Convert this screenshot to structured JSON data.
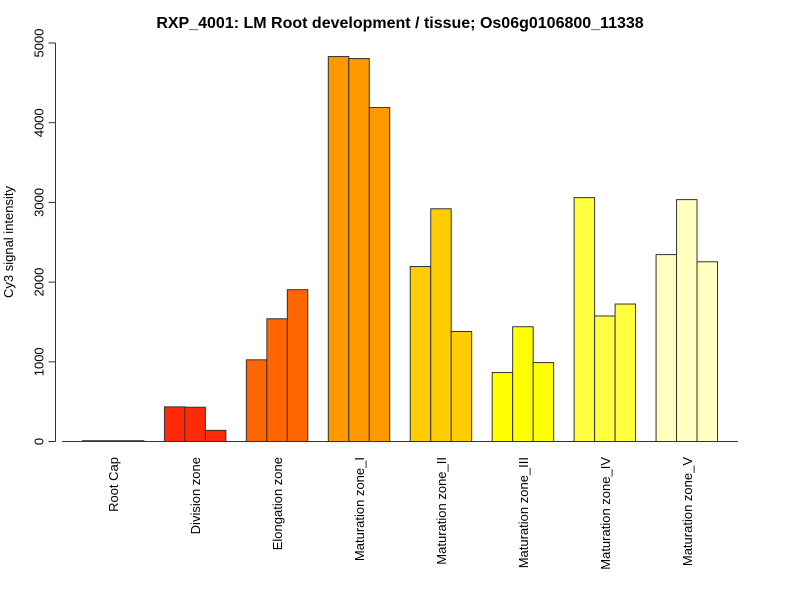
{
  "chart_data": {
    "type": "bar",
    "title": "RXP_4001: LM Root development / tissue; Os06g0106800_11338",
    "xlabel": "",
    "ylabel": "Cy3 signal intensity",
    "ylim": [
      0,
      5000
    ],
    "yticks": [
      "0",
      "1000",
      "2000",
      "3000",
      "4000",
      "5000"
    ],
    "ytick_values": [
      0,
      1000,
      2000,
      3000,
      4000,
      5000
    ],
    "grid": false,
    "legend": "none",
    "categories": [
      "Root Cap",
      "Division zone",
      "Elongation zone",
      "Maturation zone_I",
      "Maturation zone_II",
      "Maturation zone_III",
      "Maturation zone_IV",
      "Maturation zone_V"
    ],
    "colors": [
      "#FF2A0A",
      "#FF2A0A",
      "#FF6600",
      "#FF9900",
      "#FFCC00",
      "#FFFF00",
      "#FFFF40",
      "#FFFFBF"
    ],
    "replicates": [
      [
        10,
        10,
        10
      ],
      [
        435,
        430,
        140
      ],
      [
        1025,
        1540,
        1905
      ],
      [
        4830,
        4805,
        4190
      ],
      [
        2195,
        2920,
        1380
      ],
      [
        865,
        1440,
        990
      ],
      [
        3060,
        1575,
        1725
      ],
      [
        2345,
        3035,
        2255
      ]
    ]
  }
}
